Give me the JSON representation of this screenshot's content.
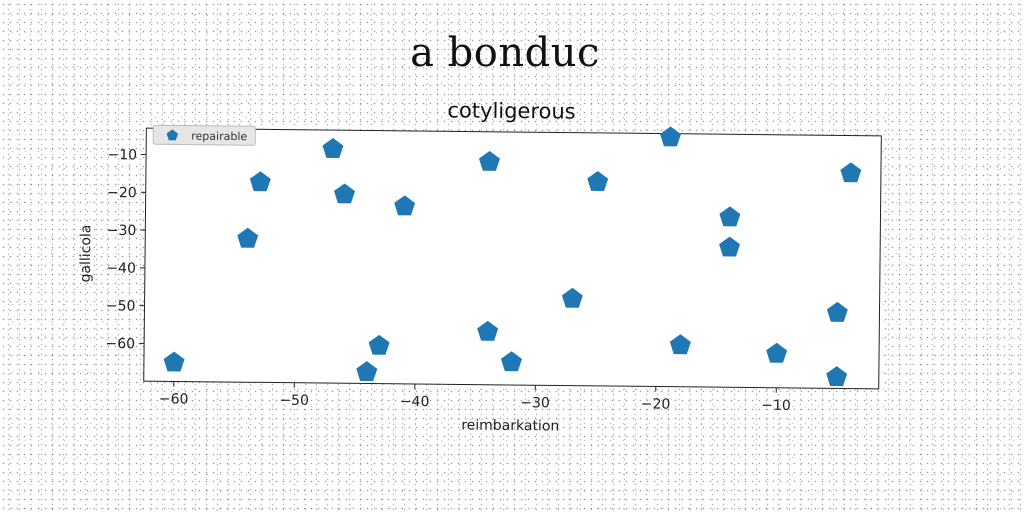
{
  "figure": {
    "title": "a bonduc"
  },
  "chart_data": {
    "type": "scatter",
    "title": "cotyligerous",
    "xlabel": "reimbarkation",
    "ylabel": "gallicola",
    "xlim": [
      -62.5,
      -1.5
    ],
    "ylim": [
      -70,
      -3
    ],
    "xticks": [
      -60,
      -50,
      -40,
      -30,
      -20,
      -10
    ],
    "yticks": [
      -10,
      -20,
      -30,
      -40,
      -50,
      -60
    ],
    "legend_placement": "top-left",
    "grid": false,
    "marker": "pentagon",
    "color": "#1f77b4",
    "series": [
      {
        "name": "repairable",
        "points": [
          {
            "x": -60,
            "y": -65
          },
          {
            "x": -54,
            "y": -32
          },
          {
            "x": -53,
            "y": -17
          },
          {
            "x": -47,
            "y": -8
          },
          {
            "x": -46,
            "y": -20
          },
          {
            "x": -44,
            "y": -67
          },
          {
            "x": -43,
            "y": -60
          },
          {
            "x": -41,
            "y": -23
          },
          {
            "x": -34,
            "y": -11
          },
          {
            "x": -34,
            "y": -56
          },
          {
            "x": -32,
            "y": -64
          },
          {
            "x": -27,
            "y": -47
          },
          {
            "x": -25,
            "y": -16
          },
          {
            "x": -19,
            "y": -4
          },
          {
            "x": -18,
            "y": -59
          },
          {
            "x": -14,
            "y": -25
          },
          {
            "x": -14,
            "y": -33
          },
          {
            "x": -10,
            "y": -61
          },
          {
            "x": -5,
            "y": -67
          },
          {
            "x": -5,
            "y": -50
          },
          {
            "x": -4,
            "y": -13
          }
        ]
      }
    ]
  }
}
